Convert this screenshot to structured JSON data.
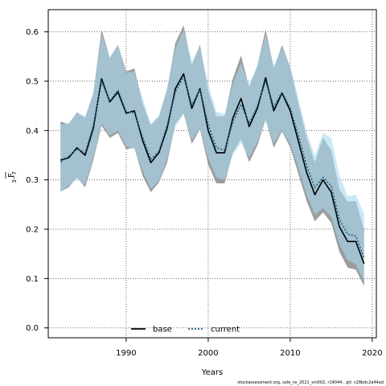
{
  "chart_data": {
    "type": "line",
    "xlabel": "Years",
    "ylabel": "F̄₃₋₇",
    "ylabel_main": "F",
    "ylabel_sub": "3−7",
    "xlim": [
      1980.5,
      2020.5
    ],
    "ylim": [
      -0.02,
      0.645
    ],
    "xticks": [
      1990,
      2000,
      2010,
      2020
    ],
    "yticks": [
      "0.0",
      "0.1",
      "0.2",
      "0.3",
      "0.4",
      "0.5",
      "0.6"
    ],
    "grid": "dotted",
    "legend_position": "bottom-center",
    "caption": "stockassessment.org,  sole_ns_2021_sm002,  r14044 ,  git: c28bdc2a44ad",
    "x": [
      1982,
      1983,
      1984,
      1985,
      1986,
      1987,
      1988,
      1989,
      1990,
      1991,
      1992,
      1993,
      1994,
      1995,
      1996,
      1997,
      1998,
      1999,
      2000,
      2001,
      2002,
      2003,
      2004,
      2005,
      2006,
      2007,
      2008,
      2009,
      2010,
      2011,
      2012,
      2013,
      2014,
      2015,
      2016,
      2017,
      2018,
      2019
    ],
    "series": [
      {
        "name": "base",
        "color": "#000000",
        "band_color": "#8c8c8c",
        "values": [
          0.34,
          0.345,
          0.365,
          0.35,
          0.405,
          0.505,
          0.458,
          0.478,
          0.435,
          0.44,
          0.38,
          0.335,
          0.355,
          0.405,
          0.485,
          0.515,
          0.445,
          0.485,
          0.4,
          0.355,
          0.355,
          0.425,
          0.465,
          0.408,
          0.445,
          0.507,
          0.44,
          0.476,
          0.44,
          0.378,
          0.315,
          0.27,
          0.3,
          0.275,
          0.205,
          0.175,
          0.175,
          0.13
        ],
        "lower": [
          0.276,
          0.285,
          0.305,
          0.285,
          0.34,
          0.41,
          0.385,
          0.395,
          0.362,
          0.365,
          0.308,
          0.275,
          0.295,
          0.335,
          0.413,
          0.435,
          0.373,
          0.403,
          0.331,
          0.293,
          0.293,
          0.355,
          0.383,
          0.336,
          0.37,
          0.422,
          0.365,
          0.398,
          0.366,
          0.312,
          0.257,
          0.216,
          0.234,
          0.213,
          0.154,
          0.122,
          0.118,
          0.085
        ],
        "upper": [
          0.418,
          0.413,
          0.437,
          0.425,
          0.475,
          0.605,
          0.547,
          0.574,
          0.52,
          0.526,
          0.455,
          0.411,
          0.428,
          0.483,
          0.578,
          0.613,
          0.532,
          0.574,
          0.48,
          0.429,
          0.429,
          0.505,
          0.552,
          0.488,
          0.531,
          0.605,
          0.526,
          0.573,
          0.528,
          0.454,
          0.386,
          0.336,
          0.386,
          0.36,
          0.281,
          0.256,
          0.257,
          0.2
        ]
      },
      {
        "name": "current",
        "color": "#1f5f8b",
        "band_color": "#a6d8f0",
        "values": [
          0.336,
          0.348,
          0.362,
          0.355,
          0.41,
          0.5,
          0.46,
          0.482,
          0.438,
          0.436,
          0.387,
          0.342,
          0.358,
          0.411,
          0.478,
          0.51,
          0.452,
          0.483,
          0.412,
          0.365,
          0.36,
          0.417,
          0.453,
          0.415,
          0.45,
          0.5,
          0.448,
          0.478,
          0.446,
          0.39,
          0.328,
          0.284,
          0.305,
          0.288,
          0.22,
          0.19,
          0.186,
          0.142
        ],
        "lower": [
          0.275,
          0.288,
          0.302,
          0.29,
          0.345,
          0.415,
          0.39,
          0.4,
          0.368,
          0.362,
          0.318,
          0.282,
          0.298,
          0.342,
          0.408,
          0.433,
          0.38,
          0.405,
          0.343,
          0.305,
          0.3,
          0.35,
          0.375,
          0.345,
          0.377,
          0.42,
          0.374,
          0.4,
          0.373,
          0.324,
          0.27,
          0.23,
          0.243,
          0.226,
          0.17,
          0.137,
          0.129,
          0.095
        ],
        "upper": [
          0.412,
          0.416,
          0.436,
          0.43,
          0.478,
          0.595,
          0.548,
          0.574,
          0.517,
          0.519,
          0.466,
          0.413,
          0.431,
          0.488,
          0.567,
          0.604,
          0.54,
          0.57,
          0.494,
          0.438,
          0.433,
          0.495,
          0.536,
          0.494,
          0.532,
          0.595,
          0.531,
          0.568,
          0.53,
          0.466,
          0.397,
          0.349,
          0.395,
          0.385,
          0.309,
          0.267,
          0.27,
          0.232
        ]
      }
    ]
  }
}
